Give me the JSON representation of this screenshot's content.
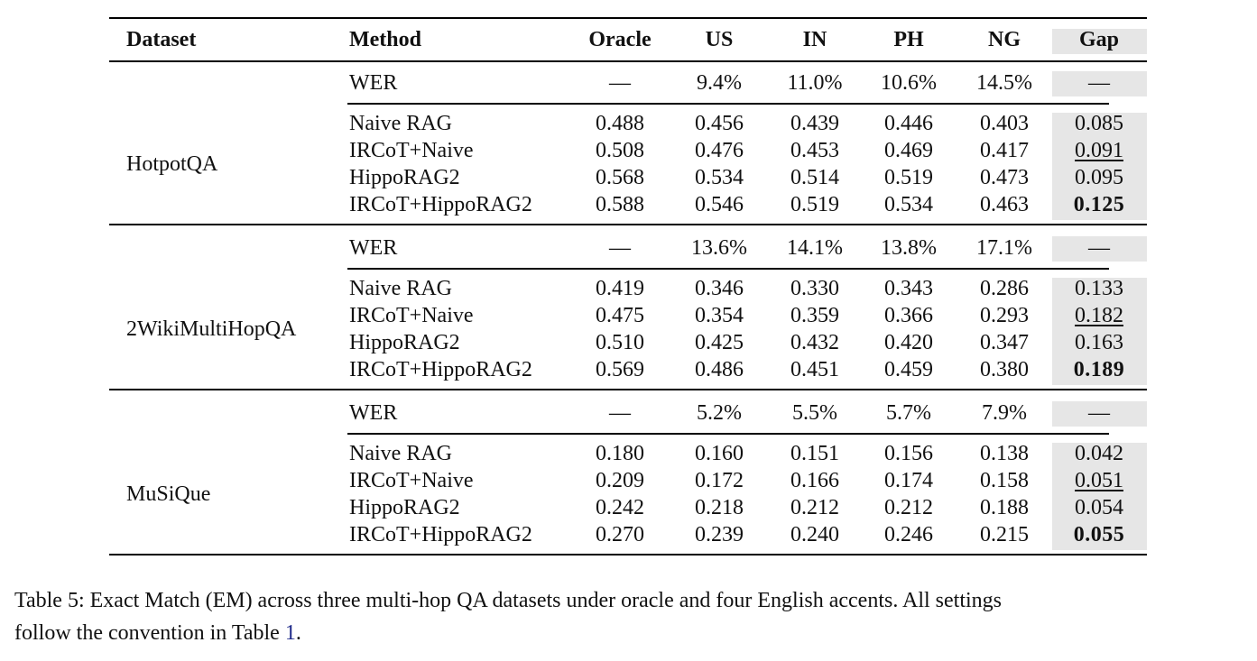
{
  "table": {
    "headers": [
      "Dataset",
      "Method",
      "Oracle",
      "US",
      "IN",
      "PH",
      "NG",
      "Gap"
    ],
    "groups": [
      {
        "dataset": "HotpotQA",
        "wer": [
          "WER",
          "—",
          "9.4%",
          "11.0%",
          "10.6%",
          "14.5%",
          "—"
        ],
        "rows": [
          [
            "Naive RAG",
            "0.488",
            "0.456",
            "0.439",
            "0.446",
            "0.403",
            "0.085"
          ],
          [
            "IRCoT+Naive",
            "0.508",
            "0.476",
            "0.453",
            "0.469",
            "0.417",
            "0.091"
          ],
          [
            "HippoRAG2",
            "0.568",
            "0.534",
            "0.514",
            "0.519",
            "0.473",
            "0.095"
          ],
          [
            "IRCoT+HippoRAG2",
            "0.588",
            "0.546",
            "0.519",
            "0.534",
            "0.463",
            "0.125"
          ]
        ]
      },
      {
        "dataset": "2WikiMultiHopQA",
        "wer": [
          "WER",
          "—",
          "13.6%",
          "14.1%",
          "13.8%",
          "17.1%",
          "—"
        ],
        "rows": [
          [
            "Naive RAG",
            "0.419",
            "0.346",
            "0.330",
            "0.343",
            "0.286",
            "0.133"
          ],
          [
            "IRCoT+Naive",
            "0.475",
            "0.354",
            "0.359",
            "0.366",
            "0.293",
            "0.182"
          ],
          [
            "HippoRAG2",
            "0.510",
            "0.425",
            "0.432",
            "0.420",
            "0.347",
            "0.163"
          ],
          [
            "IRCoT+HippoRAG2",
            "0.569",
            "0.486",
            "0.451",
            "0.459",
            "0.380",
            "0.189"
          ]
        ]
      },
      {
        "dataset": "MuSiQue",
        "wer": [
          "WER",
          "—",
          "5.2%",
          "5.5%",
          "5.7%",
          "7.9%",
          "—"
        ],
        "rows": [
          [
            "Naive RAG",
            "0.180",
            "0.160",
            "0.151",
            "0.156",
            "0.138",
            "0.042"
          ],
          [
            "IRCoT+Naive",
            "0.209",
            "0.172",
            "0.166",
            "0.174",
            "0.158",
            "0.051"
          ],
          [
            "HippoRAG2",
            "0.242",
            "0.218",
            "0.212",
            "0.212",
            "0.188",
            "0.054"
          ],
          [
            "IRCoT+HippoRAG2",
            "0.270",
            "0.239",
            "0.240",
            "0.246",
            "0.215",
            "0.055"
          ]
        ]
      }
    ]
  },
  "caption": {
    "text": "Table 5: Exact Match (EM) across three multi-hop QA datasets under oracle and four English accents. All settings",
    "line2_prefix": "follow the convention in Table ",
    "ref": "1",
    "line2_suffix": "."
  }
}
